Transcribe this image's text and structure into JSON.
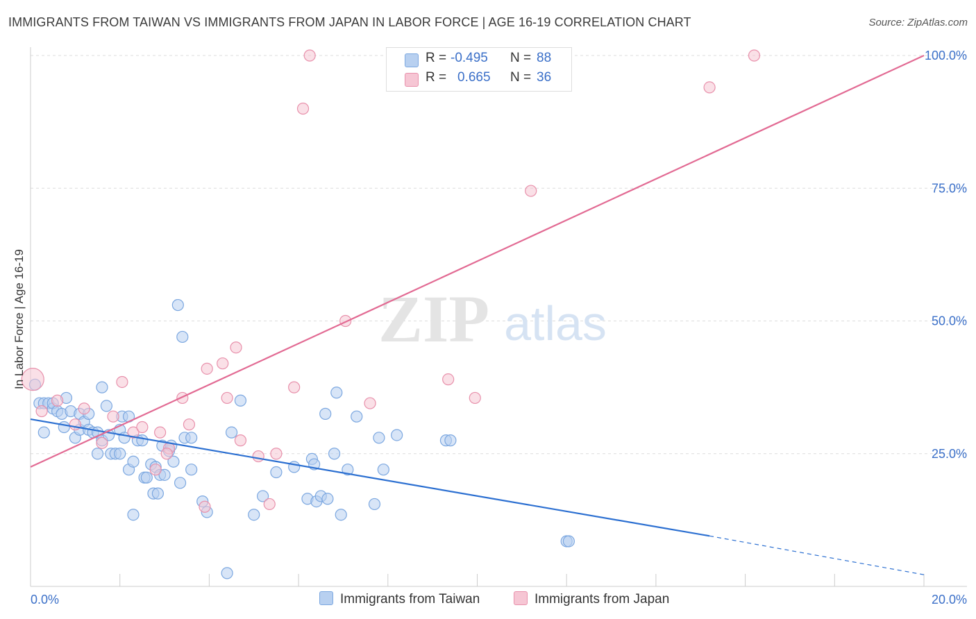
{
  "chart_data": {
    "type": "scatter",
    "title": "IMMIGRANTS FROM TAIWAN VS IMMIGRANTS FROM JAPAN IN LABOR FORCE | AGE 16-19 CORRELATION CHART",
    "source": "Source: ZipAtlas.com",
    "watermark": {
      "zip": "ZIP",
      "atlas": "atlas"
    },
    "xlabel": "",
    "ylabel": "In Labor Force | Age 16-19",
    "xlim": [
      0,
      20
    ],
    "ylim": [
      0,
      102
    ],
    "x_tick_labels": {
      "left": "0.0%",
      "right": "20.0%"
    },
    "y_ticks": [
      {
        "value": 25,
        "label": "25.0%"
      },
      {
        "value": 50,
        "label": "50.0%"
      },
      {
        "value": 75,
        "label": "75.0%"
      },
      {
        "value": 100,
        "label": "100.0%"
      }
    ],
    "legend": {
      "rows": [
        {
          "r_label": "R =",
          "r_value": "-0.495",
          "n_label": "N =",
          "n_value": "88"
        },
        {
          "r_label": "R =",
          "r_value": "0.665",
          "n_label": "N =",
          "n_value": "36"
        }
      ]
    },
    "series": [
      {
        "name": "Immigrants from Taiwan",
        "color": "#7ba7e0",
        "fill": "#b8d0f0",
        "line_color": "#2b6fd1",
        "trend": {
          "x0": 0,
          "y0": 31.5,
          "x1": 15.2,
          "y1": 9.5,
          "dash_to_x": 20,
          "dash_to_y": 2.2
        },
        "points": [
          [
            0.1,
            38
          ],
          [
            0.2,
            34.5
          ],
          [
            0.3,
            29
          ],
          [
            0.3,
            34.5
          ],
          [
            0.4,
            34.5
          ],
          [
            0.5,
            33.5
          ],
          [
            0.5,
            34.5
          ],
          [
            0.6,
            33
          ],
          [
            0.7,
            32.5
          ],
          [
            0.75,
            30
          ],
          [
            0.8,
            35.5
          ],
          [
            0.9,
            33
          ],
          [
            1.0,
            28
          ],
          [
            1.1,
            29.5
          ],
          [
            1.1,
            32.5
          ],
          [
            1.2,
            31
          ],
          [
            1.3,
            29.5
          ],
          [
            1.3,
            32.5
          ],
          [
            1.4,
            29
          ],
          [
            1.5,
            29
          ],
          [
            1.5,
            25
          ],
          [
            1.6,
            27.5
          ],
          [
            1.6,
            37.5
          ],
          [
            1.7,
            34
          ],
          [
            1.75,
            28.5
          ],
          [
            1.8,
            25
          ],
          [
            1.9,
            25
          ],
          [
            2.0,
            25
          ],
          [
            2.0,
            29.5
          ],
          [
            2.05,
            32
          ],
          [
            2.1,
            28
          ],
          [
            2.2,
            32
          ],
          [
            2.2,
            22
          ],
          [
            2.3,
            23.5
          ],
          [
            2.3,
            13.5
          ],
          [
            2.4,
            27.5
          ],
          [
            2.5,
            27.5
          ],
          [
            2.55,
            20.5
          ],
          [
            2.6,
            20.5
          ],
          [
            2.7,
            23
          ],
          [
            2.75,
            17.5
          ],
          [
            2.8,
            22.5
          ],
          [
            2.85,
            17.5
          ],
          [
            2.9,
            21
          ],
          [
            2.95,
            26.5
          ],
          [
            3.0,
            21
          ],
          [
            3.1,
            25.5
          ],
          [
            3.15,
            26.5
          ],
          [
            3.2,
            23.5
          ],
          [
            3.3,
            53
          ],
          [
            3.35,
            19.5
          ],
          [
            3.4,
            47
          ],
          [
            3.45,
            28
          ],
          [
            3.6,
            28
          ],
          [
            3.6,
            22
          ],
          [
            3.85,
            16
          ],
          [
            3.95,
            14
          ],
          [
            4.4,
            2.5
          ],
          [
            4.5,
            29
          ],
          [
            4.7,
            35
          ],
          [
            5.0,
            13.5
          ],
          [
            5.2,
            17
          ],
          [
            5.5,
            21.5
          ],
          [
            5.9,
            22.5
          ],
          [
            6.2,
            16.5
          ],
          [
            6.3,
            24
          ],
          [
            6.35,
            23
          ],
          [
            6.4,
            16
          ],
          [
            6.5,
            17
          ],
          [
            6.6,
            32.5
          ],
          [
            6.65,
            16.5
          ],
          [
            6.8,
            25
          ],
          [
            6.85,
            36.5
          ],
          [
            6.95,
            13.5
          ],
          [
            7.1,
            22
          ],
          [
            7.3,
            32
          ],
          [
            7.7,
            15.5
          ],
          [
            7.8,
            28
          ],
          [
            7.9,
            22
          ],
          [
            8.2,
            28.5
          ],
          [
            9.3,
            27.5
          ],
          [
            9.4,
            27.5
          ],
          [
            12.0,
            8.5
          ],
          [
            12.05,
            8.5
          ]
        ]
      },
      {
        "name": "Immigrants from Japan",
        "color": "#e890ab",
        "fill": "#f6c6d4",
        "line_color": "#e26a93",
        "trend": {
          "x0": 0,
          "y0": 22.5,
          "x1": 20,
          "y1": 100
        },
        "points": [
          [
            0.05,
            39
          ],
          [
            0.25,
            33
          ],
          [
            0.6,
            35
          ],
          [
            1.0,
            30.5
          ],
          [
            1.2,
            33.5
          ],
          [
            1.6,
            27
          ],
          [
            1.85,
            32
          ],
          [
            2.05,
            38.5
          ],
          [
            2.3,
            29
          ],
          [
            2.5,
            30
          ],
          [
            2.9,
            29
          ],
          [
            2.8,
            22
          ],
          [
            3.1,
            26
          ],
          [
            3.05,
            25
          ],
          [
            3.4,
            35.5
          ],
          [
            3.55,
            30.5
          ],
          [
            3.9,
            15
          ],
          [
            3.95,
            41
          ],
          [
            4.3,
            42
          ],
          [
            4.4,
            35.5
          ],
          [
            4.6,
            45
          ],
          [
            4.7,
            27.5
          ],
          [
            5.1,
            24.5
          ],
          [
            5.35,
            15.5
          ],
          [
            5.5,
            25
          ],
          [
            5.9,
            37.5
          ],
          [
            6.1,
            90
          ],
          [
            6.25,
            100
          ],
          [
            7.05,
            50
          ],
          [
            7.6,
            34.5
          ],
          [
            9.35,
            39
          ],
          [
            9.95,
            35.5
          ],
          [
            11.2,
            74.5
          ],
          [
            15.2,
            94
          ],
          [
            16.2,
            100
          ]
        ]
      }
    ]
  }
}
